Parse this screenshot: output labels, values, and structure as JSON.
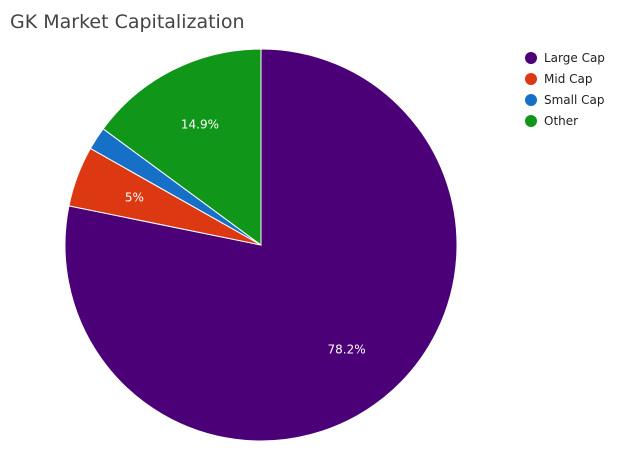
{
  "chart_data": {
    "type": "pie",
    "title": "GK Market Capitalization",
    "legend_position": "right",
    "slices": [
      {
        "label": "Large Cap",
        "value": 78.2,
        "display": "78.2%",
        "color": "#4b0077"
      },
      {
        "label": "Mid Cap",
        "value": 5,
        "display": "5%",
        "color": "#dc3912"
      },
      {
        "label": "Small Cap",
        "value": 1.9,
        "display": "",
        "color": "#1770c8"
      },
      {
        "label": "Other",
        "value": 14.9,
        "display": "14.9%",
        "color": "#109618"
      }
    ]
  }
}
